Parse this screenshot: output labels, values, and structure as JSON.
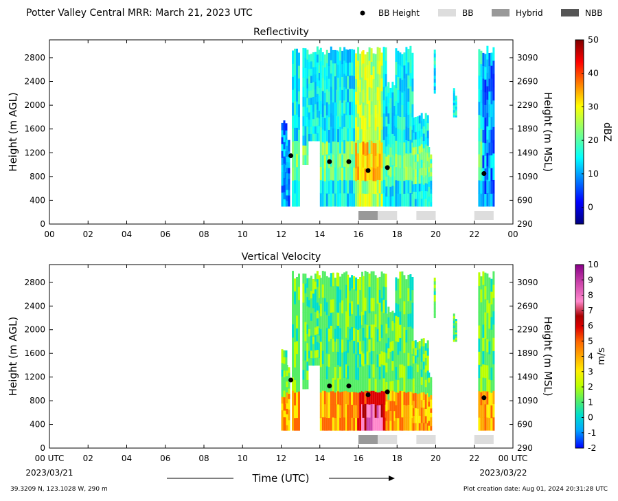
{
  "page": {
    "header_title": "Potter Valley Central MRR:  March 21, 2023 UTC",
    "legend": [
      {
        "label": "BB Height",
        "marker": "dot",
        "color": "#000000"
      },
      {
        "label": "BB",
        "marker": "box",
        "color": "#dddddd"
      },
      {
        "label": "Hybrid",
        "marker": "box",
        "color": "#999999"
      },
      {
        "label": "NBB",
        "marker": "box",
        "color": "#555555"
      }
    ],
    "footer_left": "39.3209 N, 123.1028 W, 290 m",
    "footer_right": "Plot creation date: Aug 01, 2024 20:31:28 UTC"
  },
  "chart_data": [
    {
      "type": "heatmap",
      "title": "Reflectivity",
      "xlabel": "",
      "ylabel": "Height (m AGL)",
      "y2label": "Height (m MSL)",
      "x_ticks": [
        "00",
        "02",
        "04",
        "06",
        "08",
        "10",
        "12",
        "14",
        "16",
        "18",
        "20",
        "22",
        "00"
      ],
      "x_range_hours": [
        0,
        24
      ],
      "ylim": [
        0,
        3100
      ],
      "y_ticks": [
        0,
        400,
        800,
        1200,
        1600,
        2000,
        2400,
        2800
      ],
      "y2_ticks": [
        290,
        690,
        1090,
        1490,
        1890,
        2290,
        2690,
        3090
      ],
      "colorbar": {
        "label": "dBZ",
        "range": [
          -5,
          50
        ],
        "ticks": [
          0,
          10,
          20,
          30,
          40,
          50
        ],
        "colormap": "jet"
      },
      "bb_height_points": [
        {
          "time_utc": 12.5,
          "height_m_agl": 1150
        },
        {
          "time_utc": 14.5,
          "height_m_agl": 1050
        },
        {
          "time_utc": 15.5,
          "height_m_agl": 1050
        },
        {
          "time_utc": 16.5,
          "height_m_agl": 900
        },
        {
          "time_utc": 17.5,
          "height_m_agl": 950
        },
        {
          "time_utc": 22.5,
          "height_m_agl": 850
        }
      ],
      "bright_band_classification": [
        {
          "start_utc": 16.0,
          "end_utc": 17.0,
          "class": "Hybrid"
        },
        {
          "start_utc": 17.0,
          "end_utc": 18.0,
          "class": "BB"
        },
        {
          "start_utc": 19.0,
          "end_utc": 20.0,
          "class": "BB"
        },
        {
          "start_utc": 22.0,
          "end_utc": 23.0,
          "class": "BB"
        }
      ]
    },
    {
      "type": "heatmap",
      "title": "Vertical Velocity",
      "xlabel": "Time (UTC)",
      "ylabel": "Height (m AGL)",
      "y2label": "Height (m MSL)",
      "x_ticks": [
        "00 UTC",
        "02",
        "04",
        "06",
        "08",
        "10",
        "12",
        "14",
        "16",
        "18",
        "20",
        "22",
        "00 UTC"
      ],
      "x_date_labels": {
        "start": "2023/03/21",
        "end": "2023/03/22"
      },
      "x_range_hours": [
        0,
        24
      ],
      "ylim": [
        0,
        3100
      ],
      "y_ticks": [
        0,
        400,
        800,
        1200,
        1600,
        2000,
        2400,
        2800
      ],
      "y2_ticks": [
        290,
        690,
        1090,
        1490,
        1890,
        2290,
        2690,
        3090
      ],
      "colorbar": {
        "label": "m/s",
        "range": [
          -2,
          10
        ],
        "ticks": [
          -2,
          -1,
          0,
          1,
          2,
          3,
          4,
          5,
          6,
          7,
          8,
          9,
          10
        ]
      },
      "bb_height_points": [
        {
          "time_utc": 12.5,
          "height_m_agl": 1150
        },
        {
          "time_utc": 14.5,
          "height_m_agl": 1050
        },
        {
          "time_utc": 15.5,
          "height_m_agl": 1050
        },
        {
          "time_utc": 16.5,
          "height_m_agl": 900
        },
        {
          "time_utc": 17.5,
          "height_m_agl": 950
        },
        {
          "time_utc": 22.5,
          "height_m_agl": 850
        }
      ],
      "bright_band_classification": [
        {
          "start_utc": 16.0,
          "end_utc": 17.0,
          "class": "Hybrid"
        },
        {
          "start_utc": 17.0,
          "end_utc": 18.0,
          "class": "BB"
        },
        {
          "start_utc": 19.0,
          "end_utc": 20.0,
          "class": "BB"
        },
        {
          "start_utc": 22.0,
          "end_utc": 23.0,
          "class": "BB"
        }
      ]
    }
  ]
}
